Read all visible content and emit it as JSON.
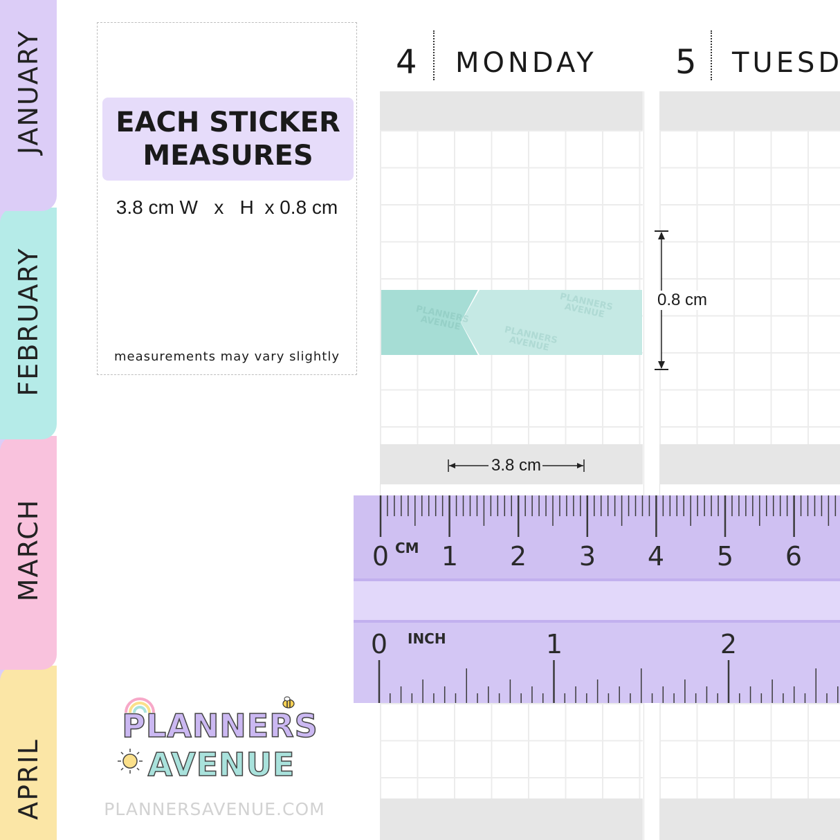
{
  "months": [
    {
      "label": "JANUARY",
      "color": "#dccdf7"
    },
    {
      "label": "FEBRUARY",
      "color": "#b5ebe8"
    },
    {
      "label": "MARCH",
      "color": "#f9c2dd"
    },
    {
      "label": "APRIL",
      "color": "#fbe6a6"
    }
  ],
  "info_card": {
    "headline_line1": "EACH STICKER",
    "headline_line2": "MEASURES",
    "dimensions": "3.8 cm W   x   H  x 0.8 cm",
    "note": "measurements may vary slightly"
  },
  "days": [
    {
      "number": "4",
      "name": "MONDAY"
    },
    {
      "number": "5",
      "name": "TUESD"
    }
  ],
  "sticker": {
    "height_label": "0.8 cm",
    "width_label": "3.8 cm",
    "watermark": "PLANNERS AVENUE",
    "colors": {
      "dark": "#a6ddd5",
      "light": "#c5e9e4"
    }
  },
  "ruler": {
    "cm_unit": "CM",
    "inch_unit": "INCH",
    "cm_numbers": [
      "0",
      "1",
      "2",
      "3",
      "4",
      "5",
      "6"
    ],
    "inch_numbers": [
      "0",
      "1",
      "2"
    ],
    "color": "#cfc0f2"
  },
  "brand": {
    "logo_line1": "PLANNERS",
    "logo_line2": "AVENUE",
    "website": "PLANNERSAVENUE.COM"
  }
}
